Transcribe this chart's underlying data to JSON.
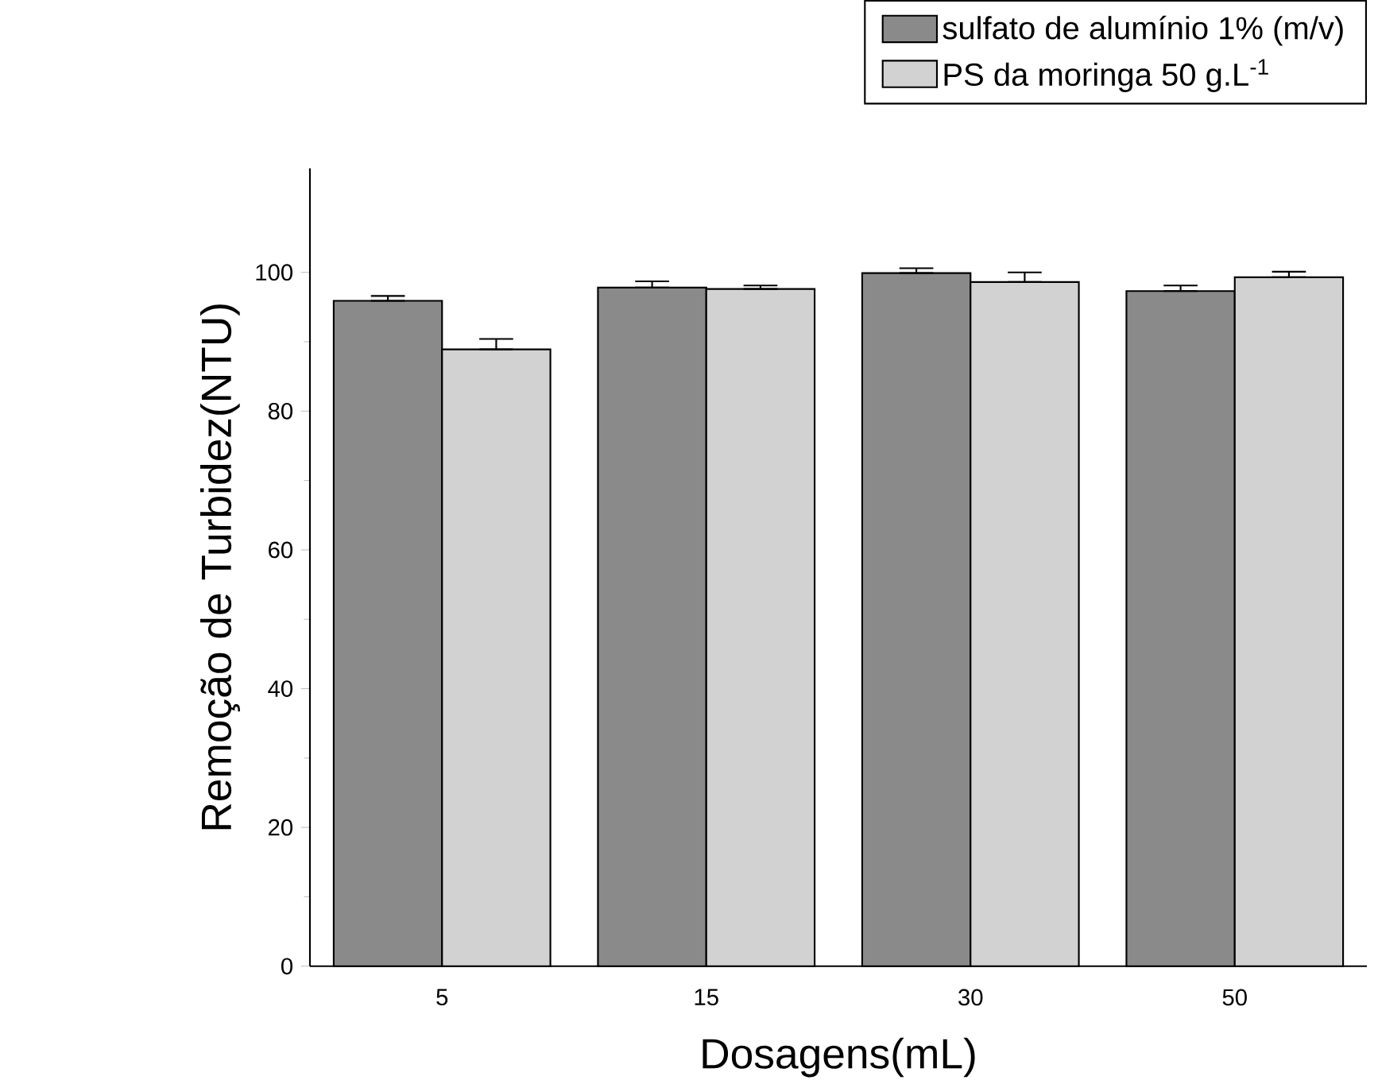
{
  "chart_data": {
    "type": "bar",
    "xlabel": "Dosagens(mL)",
    "ylabel": "Remoção de Turbidez(NTU)",
    "categories": [
      "5",
      "15",
      "30",
      "50"
    ],
    "series": [
      {
        "name": "sulfato de alumínio 1% (m/v)",
        "color": "#8a8a8a",
        "values": [
          95.9,
          97.8,
          99.9,
          97.3
        ],
        "errors": [
          [
            95.9,
            96.6
          ],
          [
            97.8,
            98.7
          ],
          [
            99.9,
            100.6
          ],
          [
            97.3,
            98.1
          ]
        ]
      },
      {
        "name": "PS da moringa 50 g.L$^{-1}$",
        "color": "#d2d2d2",
        "values": [
          88.9,
          97.6,
          98.6,
          99.3
        ],
        "errors": [
          [
            88.9,
            90.4
          ],
          [
            97.6,
            98.1
          ],
          [
            98.6,
            100.0
          ],
          [
            99.3,
            100.1
          ]
        ]
      }
    ],
    "ylim": [
      0,
      115
    ],
    "yticks": [
      0,
      20,
      40,
      60,
      80,
      100
    ],
    "grid": false,
    "legend": "top right"
  }
}
